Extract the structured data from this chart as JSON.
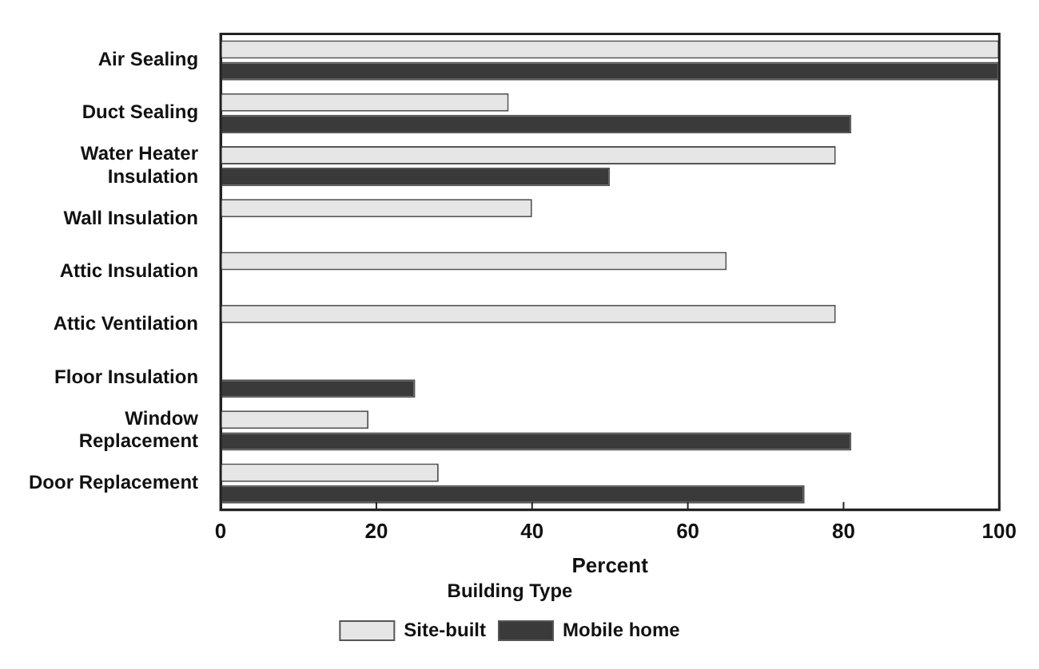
{
  "chart_data": {
    "type": "bar",
    "orientation": "horizontal",
    "xlabel": "Percent",
    "legend_title": "Building Type",
    "legend": "bottom",
    "categories": [
      "Air Sealing",
      "Duct Sealing",
      "Water Heater Insulation",
      "Wall Insulation",
      "Attic Insulation",
      "Attic Ventilation",
      "Floor Insulation",
      "Window Replacement",
      "Door Replacement"
    ],
    "series": [
      {
        "name": "Site-built",
        "color": "#e6e6e6",
        "values": [
          100,
          37,
          79,
          40,
          65,
          79,
          null,
          19,
          28
        ]
      },
      {
        "name": "Mobile home",
        "color": "#3a3a3a",
        "values": [
          100,
          81,
          50,
          null,
          null,
          null,
          25,
          81,
          75
        ]
      }
    ],
    "xlim": [
      0,
      100
    ],
    "xticks": [
      0,
      20,
      40,
      60,
      80,
      100
    ],
    "grid": false
  }
}
